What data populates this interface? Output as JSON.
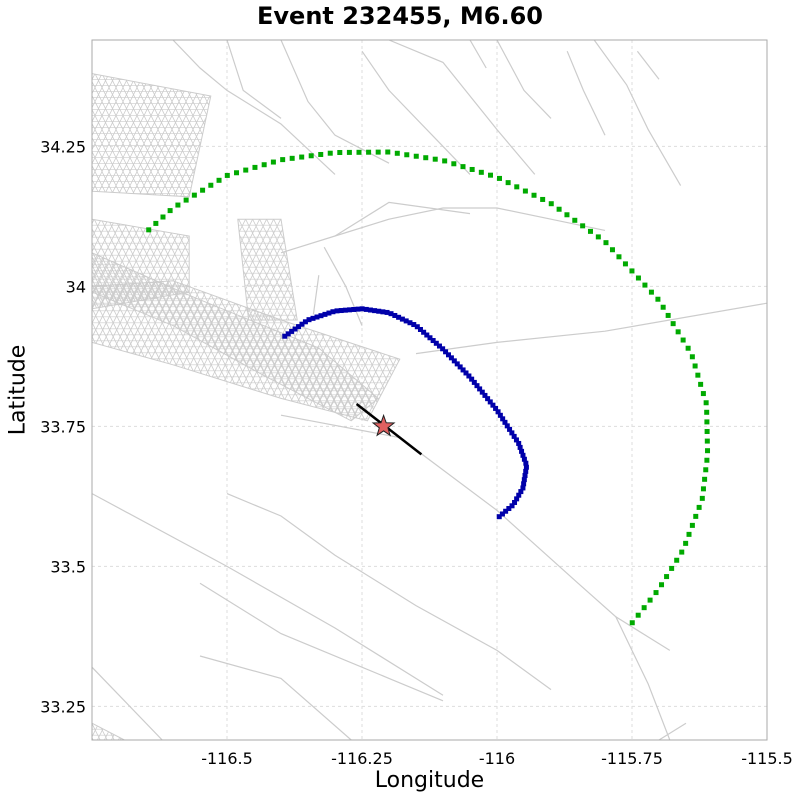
{
  "chart_data": {
    "type": "scatter",
    "title": "Event 232455, M6.60",
    "xlabel": "Longitude",
    "ylabel": "Latitude",
    "xlim": [
      -116.75,
      -115.5
    ],
    "ylim": [
      33.19,
      34.44
    ],
    "xticks": [
      -116.5,
      -116.25,
      -116,
      -115.75,
      -115.5
    ],
    "xtick_labels": [
      "-116.5",
      "-116.25",
      "-116",
      "-115.75",
      "-115.5"
    ],
    "yticks": [
      33.25,
      33.5,
      33.75,
      34,
      34.25
    ],
    "ytick_labels": [
      "33.25",
      "33.5",
      "33.75",
      "34",
      "34.25"
    ],
    "grid": true,
    "colors": {
      "inner_arc": "#0000aa",
      "outer_arc": "#00aa00",
      "rupture": "#000000",
      "epicenter": "#e06060",
      "faults": "#cccccc",
      "grid": "#dddddd"
    },
    "series": [
      {
        "points": [
          [
            -116.393,
            33.911
          ],
          [
            -116.35,
            33.94
          ],
          [
            -116.3,
            33.956
          ],
          [
            -116.25,
            33.96
          ],
          [
            -116.2,
            33.953
          ],
          [
            -116.15,
            33.93
          ],
          [
            -116.1,
            33.888
          ],
          [
            -116.05,
            33.838
          ],
          [
            -116.0,
            33.779
          ],
          [
            -115.96,
            33.72
          ],
          [
            -115.945,
            33.68
          ],
          [
            -115.952,
            33.64
          ],
          [
            -115.97,
            33.61
          ],
          [
            -115.998,
            33.587
          ]
        ]
      },
      {
        "points": [
          [
            -116.645,
            34.101
          ],
          [
            -116.6,
            34.14
          ],
          [
            -116.5,
            34.198
          ],
          [
            -116.4,
            34.226
          ],
          [
            -116.3,
            34.239
          ],
          [
            -116.2,
            34.24
          ],
          [
            -116.1,
            34.225
          ],
          [
            -116.0,
            34.195
          ],
          [
            -115.9,
            34.148
          ],
          [
            -115.8,
            34.08
          ],
          [
            -115.7,
            33.975
          ],
          [
            -115.64,
            33.88
          ],
          [
            -115.612,
            33.79
          ],
          [
            -115.61,
            33.7
          ],
          [
            -115.62,
            33.62
          ],
          [
            -115.655,
            33.53
          ],
          [
            -115.7,
            33.46
          ],
          [
            -115.758,
            33.389
          ]
        ]
      }
    ],
    "rupture": [
      [
        -116.26,
        33.79
      ],
      [
        -116.14,
        33.7
      ]
    ],
    "epicenter": [
      -116.21,
      33.75
    ],
    "faults": [
      [
        [
          -116.5,
          33.63
        ],
        [
          -116.4,
          33.59
        ],
        [
          -116.3,
          33.52
        ],
        [
          -116.15,
          33.43
        ],
        [
          -116.0,
          33.35
        ],
        [
          -115.9,
          33.28
        ]
      ],
      [
        [
          -116.75,
          33.63
        ],
        [
          -116.5,
          33.5
        ],
        [
          -116.3,
          33.39
        ],
        [
          -116.1,
          33.27
        ]
      ],
      [
        [
          -116.55,
          33.47
        ],
        [
          -116.4,
          33.38
        ],
        [
          -116.35,
          33.36
        ],
        [
          -116.2,
          33.3
        ],
        [
          -116.1,
          33.26
        ]
      ],
      [
        [
          -116.55,
          33.34
        ],
        [
          -116.4,
          33.3
        ],
        [
          -116.27,
          33.19
        ]
      ],
      [
        [
          -116.75,
          33.32
        ],
        [
          -116.62,
          33.19
        ]
      ],
      [
        [
          -116.4,
          33.77
        ],
        [
          -116.18,
          33.73
        ],
        [
          -116.0,
          33.6
        ],
        [
          -115.85,
          33.47
        ],
        [
          -115.78,
          33.41
        ],
        [
          -115.72,
          33.29
        ],
        [
          -115.68,
          33.19
        ]
      ],
      [
        [
          -115.78,
          33.41
        ],
        [
          -115.68,
          33.35
        ]
      ],
      [
        [
          -115.7,
          33.19
        ],
        [
          -115.65,
          33.22
        ]
      ],
      [
        [
          -116.4,
          34.06
        ],
        [
          -116.3,
          34.09
        ],
        [
          -116.2,
          34.12
        ],
        [
          -116.1,
          34.14
        ],
        [
          -116.0,
          34.14
        ],
        [
          -115.9,
          34.12
        ],
        [
          -115.8,
          34.1
        ]
      ],
      [
        [
          -116.3,
          34.09
        ],
        [
          -116.2,
          34.15
        ],
        [
          -116.05,
          34.13
        ]
      ],
      [
        [
          -116.15,
          33.88
        ],
        [
          -116.0,
          33.9
        ],
        [
          -115.8,
          33.92
        ],
        [
          -115.5,
          33.97
        ]
      ],
      [
        [
          -116.32,
          34.07
        ],
        [
          -116.28,
          34.0
        ],
        [
          -116.25,
          33.93
        ]
      ],
      [
        [
          -116.2,
          34.44
        ],
        [
          -116.1,
          34.4
        ],
        [
          -116.05,
          34.34
        ],
        [
          -116.0,
          34.28
        ],
        [
          -115.93,
          34.2
        ]
      ],
      [
        [
          -116.0,
          34.44
        ],
        [
          -115.95,
          34.35
        ],
        [
          -115.9,
          34.3
        ]
      ],
      [
        [
          -115.87,
          34.42
        ],
        [
          -115.84,
          34.35
        ],
        [
          -115.8,
          34.27
        ]
      ],
      [
        [
          -115.82,
          34.44
        ],
        [
          -115.76,
          34.36
        ],
        [
          -115.72,
          34.28
        ],
        [
          -115.66,
          34.18
        ]
      ],
      [
        [
          -115.74,
          34.42
        ],
        [
          -115.7,
          34.37
        ]
      ],
      [
        [
          -116.6,
          34.44
        ],
        [
          -116.55,
          34.39
        ],
        [
          -116.5,
          34.35
        ],
        [
          -116.4,
          34.29
        ],
        [
          -116.3,
          34.2
        ]
      ],
      [
        [
          -116.5,
          34.44
        ],
        [
          -116.47,
          34.35
        ],
        [
          -116.4,
          34.3
        ]
      ],
      [
        [
          -116.4,
          34.44
        ],
        [
          -116.35,
          34.33
        ],
        [
          -116.3,
          34.27
        ],
        [
          -116.2,
          34.22
        ]
      ],
      [
        [
          -116.25,
          34.42
        ],
        [
          -116.2,
          34.35
        ],
        [
          -116.12,
          34.27
        ],
        [
          -116.05,
          34.2
        ]
      ],
      [
        [
          -116.05,
          34.44
        ],
        [
          -116.02,
          34.39
        ]
      ],
      [
        [
          -116.33,
          34.02
        ],
        [
          -116.34,
          33.95
        ]
      ]
    ],
    "fault_meshes": [
      [
        [
          -116.75,
          34.38
        ],
        [
          -116.53,
          34.34
        ],
        [
          -116.57,
          34.16
        ],
        [
          -116.75,
          34.17
        ]
      ],
      [
        [
          -116.75,
          34.12
        ],
        [
          -116.57,
          34.09
        ],
        [
          -116.57,
          33.99
        ],
        [
          -116.75,
          33.96
        ]
      ],
      [
        [
          -116.75,
          34.06
        ],
        [
          -116.56,
          33.98
        ],
        [
          -116.33,
          33.89
        ],
        [
          -116.22,
          33.8
        ],
        [
          -116.27,
          33.76
        ],
        [
          -116.43,
          33.84
        ],
        [
          -116.6,
          33.93
        ],
        [
          -116.75,
          33.99
        ]
      ],
      [
        [
          -116.6,
          34.01
        ],
        [
          -116.4,
          33.94
        ],
        [
          -116.18,
          33.87
        ],
        [
          -116.24,
          33.76
        ],
        [
          -116.4,
          33.8
        ],
        [
          -116.6,
          33.86
        ],
        [
          -116.75,
          33.9
        ],
        [
          -116.75,
          34.0
        ]
      ],
      [
        [
          -116.48,
          34.12
        ],
        [
          -116.4,
          34.12
        ],
        [
          -116.37,
          33.94
        ],
        [
          -116.46,
          33.94
        ]
      ],
      [
        [
          -116.75,
          33.22
        ],
        [
          -116.69,
          33.19
        ],
        [
          -116.75,
          33.19
        ]
      ]
    ]
  }
}
